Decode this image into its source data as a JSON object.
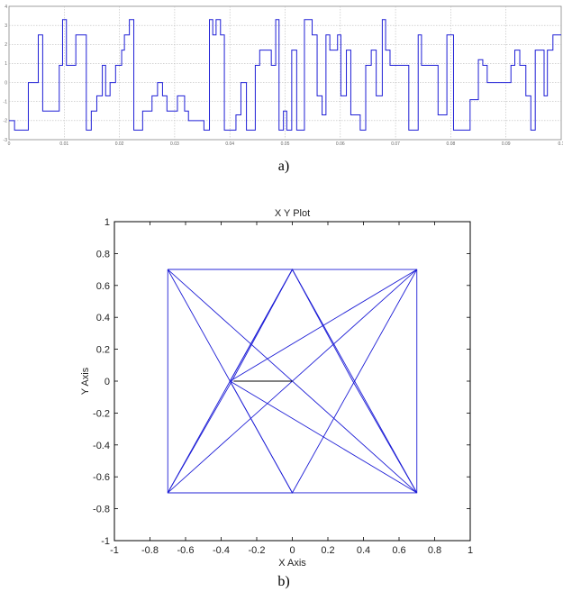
{
  "captions": {
    "a": "a)",
    "b": "b)"
  },
  "colors": {
    "trace": "#1f1fd6",
    "tracer": "#000000",
    "grid": "#bbbbbb",
    "axis": "#888888"
  },
  "chart_data": [
    {
      "type": "line",
      "title": "",
      "xlabel": "",
      "ylabel": "",
      "xlim": [
        0,
        0.1
      ],
      "ylim": [
        -3,
        4
      ],
      "grid": true,
      "x_ticks": [
        "0",
        "0.01",
        "0.02",
        "0.03",
        "0.04",
        "0.05",
        "0.06",
        "0.07",
        "0.08",
        "0.09",
        "0.1"
      ],
      "y_ticks": [
        "-3",
        "-2",
        "-1",
        "0",
        "1",
        "2",
        "3",
        "4"
      ],
      "series": [
        {
          "step": true,
          "x": [
            0,
            0.001,
            0.0035,
            0.0053,
            0.0061,
            0.0091,
            0.0097,
            0.0104,
            0.0121,
            0.014,
            0.0149,
            0.0159,
            0.0169,
            0.0175,
            0.0183,
            0.0193,
            0.0204,
            0.0209,
            0.0218,
            0.0226,
            0.0242,
            0.0259,
            0.0269,
            0.0278,
            0.0286,
            0.0305,
            0.0318,
            0.0325,
            0.0353,
            0.0363,
            0.0369,
            0.0375,
            0.0383,
            0.039,
            0.0411,
            0.042,
            0.043,
            0.0446,
            0.0454,
            0.046,
            0.0475,
            0.0483,
            0.0489,
            0.0497,
            0.0503,
            0.0512,
            0.0521,
            0.0535,
            0.0549,
            0.0558,
            0.0567,
            0.0574,
            0.0581,
            0.0595,
            0.0601,
            0.0611,
            0.0619,
            0.0636,
            0.0646,
            0.0656,
            0.0665,
            0.0676,
            0.0682,
            0.069,
            0.0724,
            0.0741,
            0.0747,
            0.0762,
            0.0777,
            0.0793,
            0.0805,
            0.0835,
            0.085,
            0.0858,
            0.0866,
            0.0878,
            0.0904,
            0.0909,
            0.0916,
            0.0925,
            0.0936,
            0.0945,
            0.0953,
            0.0961,
            0.0969,
            0.0975,
            0.0985,
            0.1
          ],
          "y": [
            -2,
            -2.5,
            0,
            2.5,
            -1.5,
            0.9,
            3.3,
            0.9,
            2.5,
            -2.5,
            -1.5,
            -0.7,
            0.9,
            -0.7,
            0,
            0.9,
            1.7,
            2.5,
            3.3,
            -2.5,
            -1.5,
            -0.7,
            0,
            -0.7,
            -1.5,
            -0.7,
            -1.5,
            -2,
            -2.5,
            3.3,
            2.5,
            3.3,
            2.5,
            -2.5,
            -1.7,
            0,
            -2.5,
            0.9,
            1.7,
            1.7,
            0.9,
            3.3,
            -2.5,
            -1.5,
            -2.5,
            1.7,
            -2.5,
            3.3,
            2.5,
            -0.7,
            -1.7,
            2.5,
            1.7,
            2.5,
            -0.7,
            1.7,
            -1.7,
            -2.5,
            0.9,
            1.7,
            -0.7,
            3.3,
            1.7,
            0.9,
            -2.5,
            2.5,
            0.9,
            0.9,
            -1.7,
            2.5,
            -2.5,
            -0.9,
            1.2,
            0.9,
            0,
            0,
            0,
            0.9,
            1.7,
            0.9,
            -0.7,
            -2.5,
            1.7,
            1.7,
            -0.7,
            1.7,
            2.5,
            2.5
          ]
        }
      ]
    },
    {
      "type": "line",
      "title": "X Y Plot",
      "xlabel": "X Axis",
      "ylabel": "Y Axis",
      "xlim": [
        -1,
        1
      ],
      "ylim": [
        -1,
        1
      ],
      "grid": false,
      "x_ticks": [
        "-1",
        "-0.8",
        "-0.6",
        "-0.4",
        "-0.2",
        "0",
        "0.2",
        "0.4",
        "0.6",
        "0.8",
        "1"
      ],
      "y_ticks": [
        "-1",
        "-0.8",
        "-0.6",
        "-0.4",
        "-0.2",
        "0",
        "0.2",
        "0.4",
        "0.6",
        "0.8",
        "1"
      ],
      "series": [
        {
          "x": [
            -0.7,
            0.7,
            0.7,
            -0.7,
            -0.7
          ],
          "y": [
            0.7,
            0.7,
            -0.7,
            -0.7,
            0.7
          ]
        },
        {
          "x": [
            -0.7,
            -0.35,
            0,
            0.35,
            0.7,
            0.35,
            0,
            -0.35,
            -0.7
          ],
          "y": [
            0.7,
            0,
            -0.7,
            0,
            0.7,
            0,
            -0.7,
            0,
            0.7
          ]
        },
        {
          "x": [
            -0.7,
            -0.35,
            0,
            0.35,
            0.7
          ],
          "y": [
            -0.7,
            0,
            0.7,
            0,
            -0.7
          ]
        },
        {
          "x": [
            -0.7,
            -0.34,
            0,
            0.34,
            0.7
          ],
          "y": [
            -0.7,
            0,
            0.7,
            0,
            -0.7
          ]
        },
        {
          "x": [
            -0.7,
            0.7,
            -0.35,
            0.7,
            -0.7
          ],
          "y": [
            0.7,
            -0.7,
            0,
            0.7,
            -0.7
          ]
        },
        {
          "x": [
            -0.7,
            0,
            -0.35,
            0,
            -0.7
          ],
          "y": [
            0.7,
            0.7,
            0,
            -0.7,
            -0.7
          ]
        }
      ],
      "tracer": {
        "x": [
          0,
          -0.33
        ],
        "y": [
          0,
          0
        ]
      }
    }
  ]
}
